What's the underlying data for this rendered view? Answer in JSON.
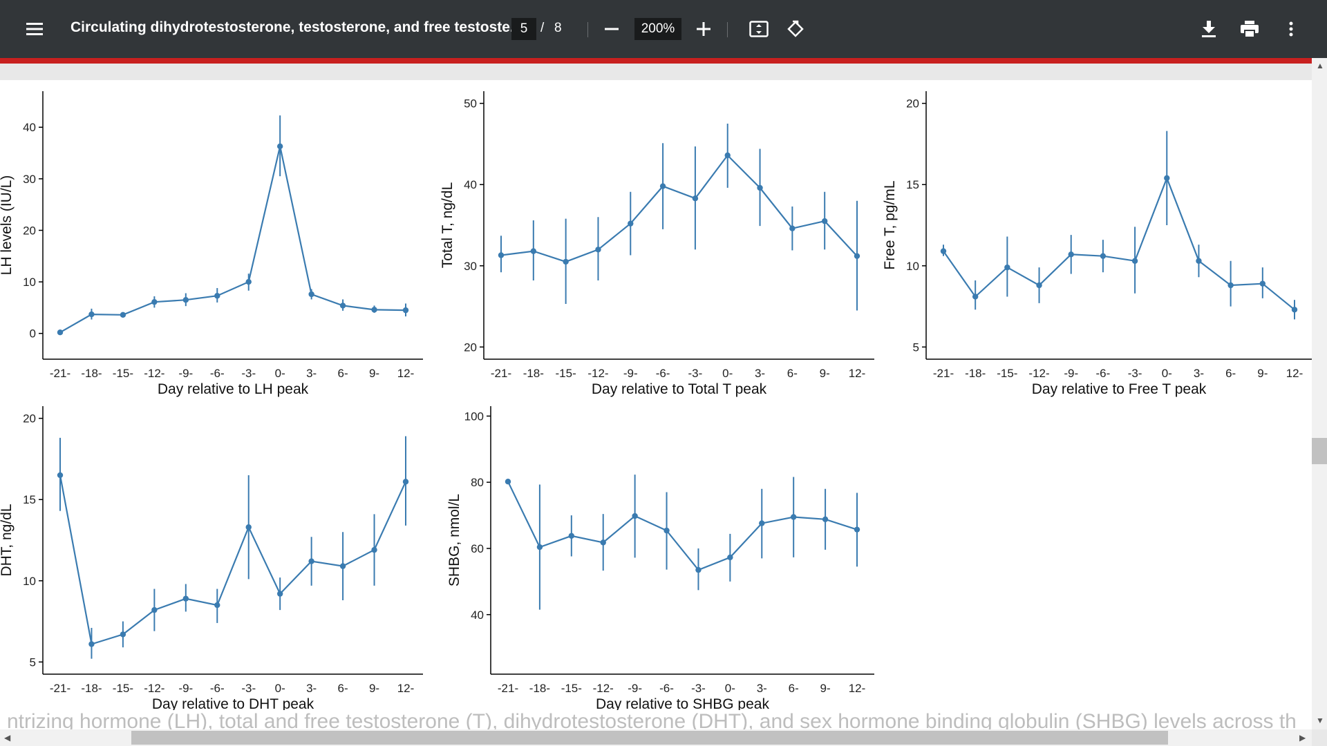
{
  "toolbar": {
    "title": "Circulating dihydrotestosterone, testosterone, and free testoste...",
    "page_current": "5",
    "page_sep": "/",
    "page_total": "8",
    "zoom": "200%",
    "icons": [
      "menu-icon",
      "zoom-out-icon",
      "zoom-in-icon",
      "fit-page-icon",
      "rotate-icon",
      "download-icon",
      "print-icon",
      "more-vert-icon"
    ]
  },
  "colors": {
    "toolbar_bg": "#323639",
    "accent_red": "#c8201f",
    "series": "#3a7bb0"
  },
  "below_text": "ntrizing hormone (LH), total and free testosterone (T), dihydrotestosterone (DHT), and sex hormone binding globulin (SHBG) levels across th",
  "chart_data": [
    {
      "type": "line",
      "xlabel": "Day relative to LH peak",
      "ylabel": "LH levels (IU/L)",
      "x": [
        -21,
        -18,
        -15,
        -12,
        -9,
        -6,
        -3,
        0,
        3,
        6,
        9,
        12
      ],
      "x_ticks": [
        "-21-",
        "-18-",
        "-15-",
        "-12-",
        "-9-",
        "-6-",
        "-3-",
        "0-",
        "3-",
        "6-",
        "9-",
        "12-"
      ],
      "ylim": [
        -5,
        47
      ],
      "yticks": [
        0,
        10,
        20,
        30,
        40
      ],
      "y": [
        0.2,
        3.7,
        3.6,
        6.1,
        6.5,
        7.3,
        10.0,
        36.3,
        7.6,
        5.4,
        4.6,
        4.5
      ],
      "err_low": [
        0.1,
        2.7,
        3.2,
        5.0,
        5.3,
        6.0,
        8.3,
        30.5,
        6.6,
        4.4,
        4.0,
        3.3
      ],
      "err_high": [
        0.4,
        4.8,
        4.0,
        7.2,
        7.8,
        8.8,
        11.6,
        42.3,
        8.6,
        6.6,
        5.4,
        5.8
      ]
    },
    {
      "type": "line",
      "xlabel": "Day relative to Total T peak",
      "ylabel": "Total T, ng/dL",
      "x": [
        -21,
        -18,
        -15,
        -12,
        -9,
        -6,
        -3,
        0,
        3,
        6,
        9,
        12
      ],
      "x_ticks": [
        "-21-",
        "-18-",
        "-15-",
        "-12-",
        "-9-",
        "-6-",
        "-3-",
        "0-",
        "3-",
        "6-",
        "9-",
        "12-"
      ],
      "ylim": [
        18.5,
        51.5
      ],
      "yticks": [
        20,
        30,
        40,
        50
      ],
      "y": [
        31.3,
        31.8,
        30.5,
        32.0,
        35.2,
        39.8,
        38.3,
        43.6,
        39.6,
        34.6,
        35.5,
        31.2
      ],
      "err_low": [
        29.2,
        28.2,
        25.3,
        28.2,
        31.3,
        34.5,
        32.0,
        39.6,
        34.9,
        31.9,
        32.0,
        24.5
      ],
      "err_high": [
        33.7,
        35.6,
        35.8,
        36.0,
        39.1,
        45.1,
        44.7,
        47.5,
        44.4,
        37.3,
        39.1,
        38.0
      ]
    },
    {
      "type": "line",
      "xlabel": "Day relative to Free T peak",
      "ylabel": "Free T, pg/mL",
      "x": [
        -21,
        -18,
        -15,
        -12,
        -9,
        -6,
        -3,
        0,
        3,
        6,
        9,
        12
      ],
      "x_ticks": [
        "-21-",
        "-18-",
        "-15-",
        "-12-",
        "-9-",
        "-6-",
        "-3-",
        "0-",
        "3-",
        "6-",
        "9-",
        "12-"
      ],
      "ylim": [
        4.25,
        20.75
      ],
      "yticks": [
        5,
        10,
        15,
        20
      ],
      "y": [
        10.9,
        8.1,
        9.9,
        8.8,
        10.7,
        10.6,
        10.3,
        15.4,
        10.3,
        8.8,
        8.9,
        7.3
      ],
      "err_low": [
        10.6,
        7.3,
        8.1,
        7.7,
        9.5,
        9.6,
        8.3,
        12.5,
        9.3,
        7.5,
        8.0,
        6.7
      ],
      "err_high": [
        11.3,
        9.1,
        11.8,
        9.9,
        11.9,
        11.6,
        12.4,
        18.3,
        11.3,
        10.3,
        9.9,
        7.9
      ]
    },
    {
      "type": "line",
      "xlabel": "Day relative to DHT peak",
      "ylabel": "DHT, ng/dL",
      "x": [
        -21,
        -18,
        -15,
        -12,
        -9,
        -6,
        -3,
        0,
        3,
        6,
        9,
        12
      ],
      "x_ticks": [
        "-21-",
        "-18-",
        "-15-",
        "-12-",
        "-9-",
        "-6-",
        "-3-",
        "0-",
        "3-",
        "6-",
        "9-",
        "12-"
      ],
      "ylim": [
        4.25,
        20.75
      ],
      "yticks": [
        5,
        10,
        15,
        20
      ],
      "y": [
        16.5,
        6.1,
        6.7,
        8.2,
        8.9,
        8.5,
        13.3,
        9.2,
        11.2,
        10.9,
        11.9,
        16.1
      ],
      "err_low": [
        14.3,
        5.2,
        5.9,
        6.9,
        8.1,
        7.4,
        10.1,
        8.2,
        9.7,
        8.8,
        9.7,
        13.4
      ],
      "err_high": [
        18.8,
        7.1,
        7.5,
        9.5,
        9.8,
        9.5,
        16.5,
        10.2,
        12.7,
        13.0,
        14.1,
        18.9
      ]
    },
    {
      "type": "line",
      "xlabel": "Day relative to SHBG peak",
      "ylabel": "SHBG, nmol/L",
      "x": [
        -21,
        -18,
        -15,
        -12,
        -9,
        -6,
        -3,
        0,
        3,
        6,
        9,
        12
      ],
      "x_ticks": [
        "-21-",
        "-18-",
        "-15-",
        "-12-",
        "-9-",
        "-6-",
        "-3-",
        "0-",
        "3-",
        "6-",
        "9-",
        "12-"
      ],
      "ylim": [
        22,
        103
      ],
      "yticks": [
        40,
        60,
        80,
        100
      ],
      "y": [
        80.2,
        60.4,
        63.8,
        61.8,
        69.8,
        65.4,
        53.5,
        57.3,
        67.6,
        69.5,
        68.8,
        65.7
      ],
      "err_low": [
        80.2,
        41.5,
        57.6,
        53.3,
        57.2,
        53.6,
        47.4,
        50.0,
        57.0,
        57.3,
        59.6,
        54.5
      ],
      "err_high": [
        80.2,
        79.3,
        70.0,
        70.4,
        82.3,
        77.0,
        60.0,
        64.4,
        78.0,
        81.6,
        78.0,
        76.8
      ]
    }
  ]
}
